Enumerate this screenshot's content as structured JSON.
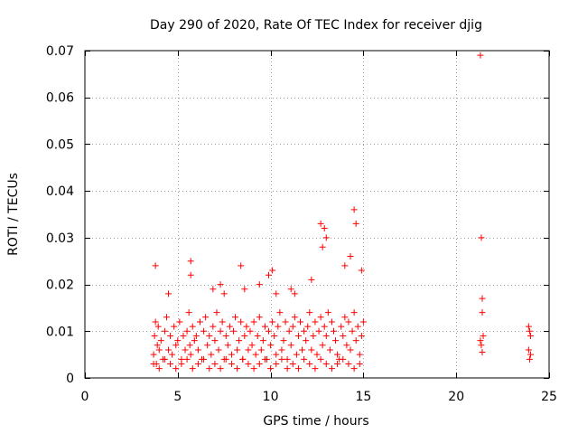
{
  "chart_data": {
    "type": "scatter",
    "title": "Day 290 of 2020, Rate Of TEC Index for receiver djig",
    "xlabel": "GPS time / hours",
    "ylabel": "ROTI / TECUs",
    "xlim": [
      0,
      25
    ],
    "ylim": [
      0,
      0.07
    ],
    "x_ticks": [
      0,
      5,
      10,
      15,
      20,
      25
    ],
    "y_ticks": [
      0,
      0.01,
      0.02,
      0.03,
      0.04,
      0.05,
      0.06,
      0.07
    ],
    "x_tick_labels": [
      "0",
      "5",
      "10",
      "15",
      "20",
      "25"
    ],
    "y_tick_labels": [
      "0",
      "0.01",
      "0.02",
      "0.03",
      "0.04",
      "0.05",
      "0.06",
      "0.07"
    ],
    "grid": true,
    "legend": "none",
    "marker": "+",
    "color": "#ff0000",
    "series": [
      {
        "x": [
          3.7,
          3.75,
          3.8,
          3.85,
          3.9,
          3.95,
          4.0,
          4.1,
          4.2,
          4.3,
          4.4,
          4.5,
          4.6,
          4.7,
          4.8,
          4.9,
          5.0,
          5.1,
          5.2,
          5.3,
          5.4,
          5.5,
          5.6,
          5.65,
          5.7,
          5.8,
          5.9,
          6.0,
          6.1,
          6.2,
          6.3,
          6.4,
          6.5,
          6.6,
          6.7,
          6.8,
          6.9,
          7.0,
          7.1,
          7.2,
          7.3,
          7.4,
          7.5,
          7.6,
          7.7,
          7.8,
          7.9,
          8.0,
          8.1,
          8.2,
          8.3,
          8.4,
          8.5,
          8.6,
          8.7,
          8.8,
          8.9,
          9.0,
          9.1,
          9.2,
          9.3,
          9.4,
          9.5,
          9.6,
          9.7,
          9.8,
          9.9,
          10.0,
          10.1,
          10.2,
          10.3,
          10.4,
          10.5,
          10.6,
          10.7,
          10.8,
          10.9,
          11.0,
          11.1,
          11.2,
          11.3,
          11.4,
          11.5,
          11.6,
          11.7,
          11.8,
          11.9,
          12.0,
          12.1,
          12.2,
          12.3,
          12.4,
          12.5,
          12.6,
          12.7,
          12.8,
          12.9,
          13.0,
          13.1,
          13.2,
          13.3,
          13.4,
          13.5,
          13.6,
          13.7,
          13.8,
          13.9,
          14.0,
          14.1,
          14.2,
          14.3,
          14.4,
          14.5,
          14.6,
          14.7,
          14.8,
          14.9,
          15.0,
          3.7,
          4.0,
          4.3,
          4.6,
          4.9,
          5.2,
          5.5,
          5.8,
          6.1,
          6.4,
          6.7,
          7.0,
          7.3,
          7.6,
          7.9,
          8.2,
          8.5,
          8.8,
          9.1,
          9.4,
          9.7,
          10.0,
          10.3,
          10.6,
          10.9,
          11.2,
          11.5,
          11.8,
          12.1,
          12.4,
          12.7,
          13.0,
          13.3,
          13.6,
          13.9,
          14.2,
          14.5,
          14.8,
          3.8,
          4.5,
          5.7,
          5.7,
          6.9,
          7.3,
          7.5,
          8.4,
          8.6,
          9.4,
          9.9,
          10.1,
          10.3,
          11.1,
          11.3,
          12.2,
          12.7,
          12.8,
          12.9,
          13.0,
          14.0,
          14.3,
          14.5,
          14.6,
          14.9,
          21.3,
          21.35,
          21.4,
          21.4,
          21.45,
          21.3,
          21.35,
          21.4,
          23.9,
          23.95,
          24.0,
          23.9,
          24.0,
          23.95
        ],
        "y": [
          0.005,
          0.009,
          0.012,
          0.003,
          0.007,
          0.011,
          0.006,
          0.008,
          0.004,
          0.01,
          0.013,
          0.006,
          0.009,
          0.005,
          0.011,
          0.007,
          0.008,
          0.012,
          0.004,
          0.009,
          0.006,
          0.01,
          0.014,
          0.007,
          0.005,
          0.011,
          0.008,
          0.009,
          0.006,
          0.012,
          0.004,
          0.01,
          0.013,
          0.007,
          0.009,
          0.005,
          0.011,
          0.008,
          0.014,
          0.006,
          0.01,
          0.012,
          0.004,
          0.009,
          0.007,
          0.011,
          0.005,
          0.01,
          0.013,
          0.006,
          0.008,
          0.012,
          0.004,
          0.009,
          0.011,
          0.006,
          0.01,
          0.007,
          0.012,
          0.005,
          0.009,
          0.013,
          0.006,
          0.008,
          0.011,
          0.004,
          0.01,
          0.007,
          0.012,
          0.009,
          0.005,
          0.011,
          0.014,
          0.006,
          0.008,
          0.012,
          0.004,
          0.01,
          0.007,
          0.011,
          0.013,
          0.005,
          0.009,
          0.012,
          0.006,
          0.01,
          0.008,
          0.011,
          0.014,
          0.006,
          0.009,
          0.012,
          0.005,
          0.01,
          0.013,
          0.007,
          0.011,
          0.009,
          0.014,
          0.006,
          0.012,
          0.01,
          0.008,
          0.005,
          0.004,
          0.011,
          0.009,
          0.013,
          0.007,
          0.012,
          0.006,
          0.01,
          0.014,
          0.008,
          0.011,
          0.005,
          0.009,
          0.012,
          0.003,
          0.002,
          0.004,
          0.003,
          0.002,
          0.003,
          0.004,
          0.002,
          0.003,
          0.004,
          0.002,
          0.003,
          0.002,
          0.004,
          0.003,
          0.002,
          0.004,
          0.003,
          0.002,
          0.003,
          0.004,
          0.002,
          0.003,
          0.004,
          0.002,
          0.003,
          0.002,
          0.004,
          0.003,
          0.002,
          0.004,
          0.003,
          0.002,
          0.003,
          0.004,
          0.003,
          0.002,
          0.003,
          0.024,
          0.018,
          0.025,
          0.022,
          0.019,
          0.02,
          0.018,
          0.024,
          0.019,
          0.02,
          0.022,
          0.023,
          0.018,
          0.019,
          0.018,
          0.021,
          0.033,
          0.028,
          0.032,
          0.03,
          0.024,
          0.026,
          0.036,
          0.033,
          0.023,
          0.069,
          0.03,
          0.017,
          0.014,
          0.009,
          0.008,
          0.007,
          0.0055,
          0.011,
          0.01,
          0.009,
          0.006,
          0.005,
          0.004
        ]
      }
    ]
  }
}
